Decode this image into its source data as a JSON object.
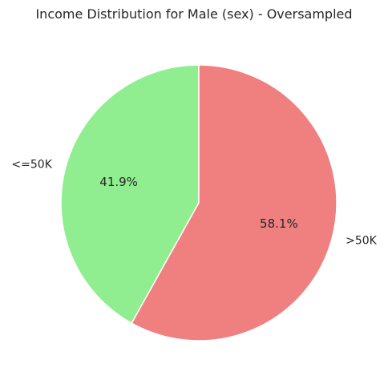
{
  "chart_data": {
    "type": "pie",
    "title": "Income Distribution for Male (sex) - Oversampled",
    "categories": [
      "<=50K",
      ">50K"
    ],
    "values": [
      41.9,
      58.1
    ],
    "value_labels": [
      "41.9%",
      "58.1%"
    ],
    "colors": [
      "#90ee90",
      "#f08080"
    ],
    "start_angle_deg": 90,
    "direction": "counterclockwise",
    "legend": "none"
  }
}
